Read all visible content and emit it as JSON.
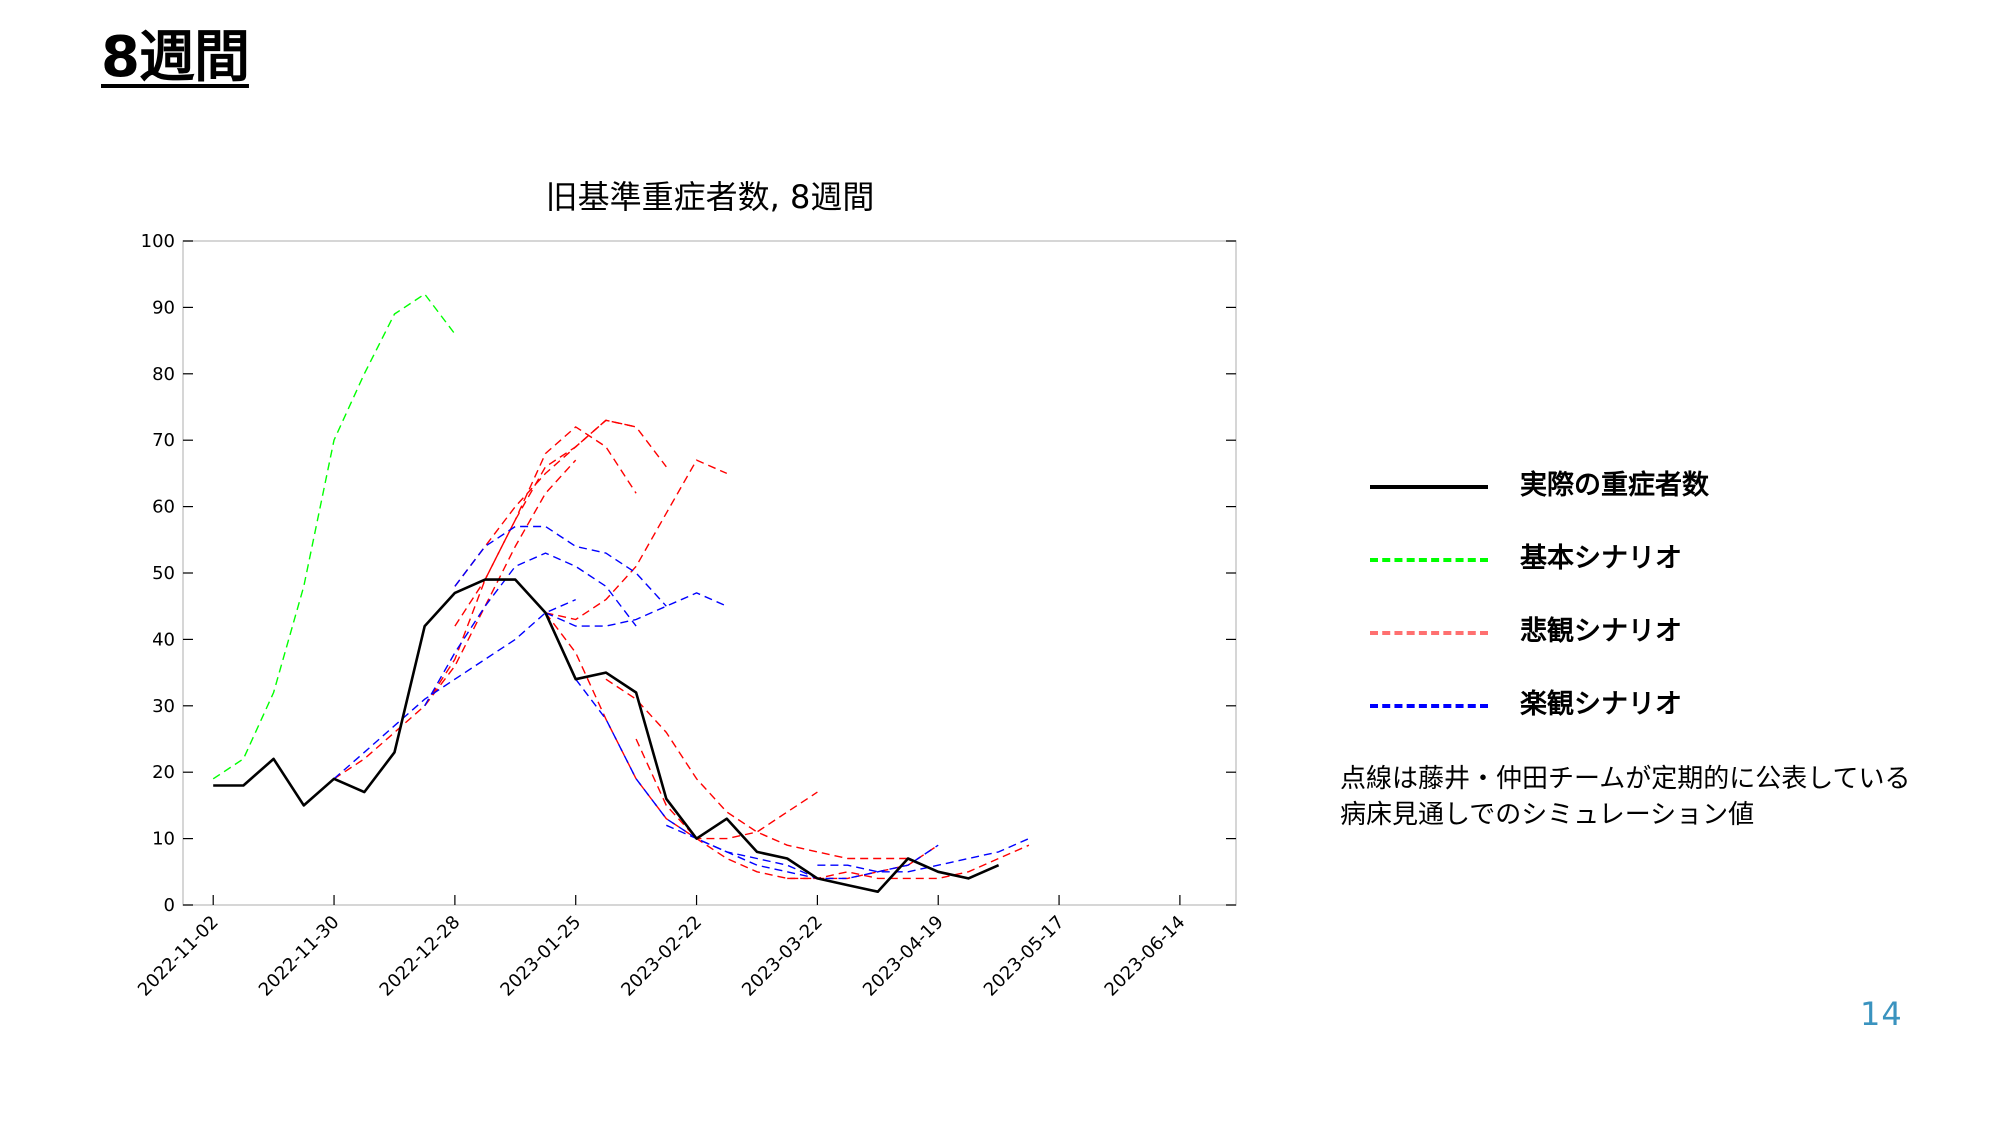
{
  "slide": {
    "title": "8週間",
    "page_number": "14"
  },
  "legend": {
    "items": [
      {
        "label": "実際の重症者数",
        "color": "#000000",
        "style": "solid"
      },
      {
        "label": "基本シナリオ",
        "color": "#00ff00",
        "style": "dashed"
      },
      {
        "label": "悲観シナリオ",
        "color": "#ff7070",
        "style": "dashed"
      },
      {
        "label": "楽観シナリオ",
        "color": "#0000ff",
        "style": "dashed"
      }
    ]
  },
  "note": {
    "line1": "点線は藤井・仲田チームが定期的に公表している",
    "line2": "病床見通しでのシミュレーション値"
  },
  "chart_data": {
    "type": "line",
    "title": "旧基準重症者数, 8週間",
    "xlabel": "",
    "ylabel": "",
    "ylim": [
      0,
      100
    ],
    "yticks": [
      0,
      10,
      20,
      30,
      40,
      50,
      60,
      70,
      80,
      90,
      100
    ],
    "xticks": [
      "2022-11-02",
      "2022-11-30",
      "2022-12-28",
      "2023-01-25",
      "2023-02-22",
      "2023-03-22",
      "2023-04-19",
      "2023-05-17",
      "2023-06-14"
    ],
    "xlim": [
      "2022-10-26",
      "2023-06-27"
    ],
    "grid": false,
    "colors": {
      "actual": "#000000",
      "base": "#00ff00",
      "pessimistic": "#ff0000",
      "optimistic": "#0000ff"
    },
    "series": [
      {
        "group": "actual",
        "x": [
          "2022-11-02",
          "2022-11-09",
          "2022-11-16",
          "2022-11-23",
          "2022-11-30",
          "2022-12-07",
          "2022-12-14",
          "2022-12-21",
          "2022-12-28",
          "2023-01-04",
          "2023-01-11",
          "2023-01-18",
          "2023-01-25",
          "2023-02-01",
          "2023-02-08",
          "2023-02-15",
          "2023-02-22",
          "2023-03-01",
          "2023-03-08",
          "2023-03-15",
          "2023-03-22",
          "2023-03-29",
          "2023-04-05",
          "2023-04-12",
          "2023-04-19",
          "2023-04-26",
          "2023-05-03"
        ],
        "y": [
          18,
          18,
          22,
          15,
          19,
          17,
          23,
          42,
          47,
          49,
          49,
          44,
          34,
          35,
          32,
          16,
          10,
          13,
          8,
          7,
          4,
          3,
          2,
          7,
          5,
          4,
          6
        ]
      },
      {
        "group": "base",
        "x": [
          "2022-11-02",
          "2022-11-09",
          "2022-11-16",
          "2022-11-23",
          "2022-11-30",
          "2022-12-07",
          "2022-12-14",
          "2022-12-21",
          "2022-12-28"
        ],
        "y": [
          19,
          22,
          32,
          48,
          70,
          80,
          89,
          92,
          86
        ]
      },
      {
        "group": "pessimistic",
        "x": [
          "2022-11-30",
          "2022-12-07",
          "2022-12-14",
          "2022-12-21",
          "2022-12-28",
          "2023-01-04",
          "2023-01-11",
          "2023-01-18",
          "2023-01-25"
        ],
        "y": [
          19,
          22,
          26,
          30,
          36,
          45,
          54,
          62,
          67
        ]
      },
      {
        "group": "pessimistic",
        "x": [
          "2022-12-21",
          "2022-12-28",
          "2023-01-04",
          "2023-01-11",
          "2023-01-18",
          "2023-01-25",
          "2023-02-01",
          "2023-02-08"
        ],
        "y": [
          30,
          37,
          49,
          58,
          66,
          69,
          73,
          72
        ]
      },
      {
        "group": "pessimistic",
        "x": [
          "2022-12-28",
          "2023-01-04",
          "2023-01-11",
          "2023-01-18",
          "2023-01-25",
          "2023-02-01",
          "2023-02-08"
        ],
        "y": [
          42,
          49,
          58,
          68,
          72,
          69,
          62
        ]
      },
      {
        "group": "pessimistic",
        "x": [
          "2022-12-28",
          "2023-01-04",
          "2023-01-11",
          "2023-01-18",
          "2023-01-25",
          "2023-02-01",
          "2023-02-08",
          "2023-02-15"
        ],
        "y": [
          48,
          54,
          60,
          65,
          69,
          73,
          72,
          66
        ]
      },
      {
        "group": "pessimistic",
        "x": [
          "2023-01-18",
          "2023-01-25",
          "2023-02-01",
          "2023-02-08",
          "2023-02-15",
          "2023-02-22",
          "2023-03-01"
        ],
        "y": [
          44,
          43,
          46,
          51,
          59,
          67,
          65
        ]
      },
      {
        "group": "pessimistic",
        "x": [
          "2023-01-18",
          "2023-01-25",
          "2023-02-01",
          "2023-02-08",
          "2023-02-15",
          "2023-02-22",
          "2023-03-01",
          "2023-03-08",
          "2023-03-15",
          "2023-03-22"
        ],
        "y": [
          44,
          38,
          28,
          19,
          13,
          10,
          10,
          11,
          14,
          17
        ]
      },
      {
        "group": "pessimistic",
        "x": [
          "2023-02-01",
          "2023-02-08",
          "2023-02-15",
          "2023-02-22",
          "2023-03-01",
          "2023-03-08",
          "2023-03-15",
          "2023-03-22",
          "2023-03-29",
          "2023-04-05",
          "2023-04-12"
        ],
        "y": [
          34,
          31,
          26,
          19,
          14,
          11,
          9,
          8,
          7,
          7,
          7
        ]
      },
      {
        "group": "pessimistic",
        "x": [
          "2023-02-08",
          "2023-02-15",
          "2023-02-22",
          "2023-03-01",
          "2023-03-08",
          "2023-03-15",
          "2023-03-22",
          "2023-03-29",
          "2023-04-05",
          "2023-04-12",
          "2023-04-19"
        ],
        "y": [
          25,
          15,
          10,
          7,
          5,
          4,
          4,
          4,
          5,
          6,
          9
        ]
      },
      {
        "group": "pessimistic",
        "x": [
          "2023-03-15",
          "2023-03-22",
          "2023-03-29",
          "2023-04-05",
          "2023-04-12",
          "2023-04-19",
          "2023-04-26",
          "2023-05-03",
          "2023-05-10"
        ],
        "y": [
          4,
          4,
          5,
          4,
          4,
          4,
          5,
          7,
          9
        ]
      },
      {
        "group": "optimistic",
        "x": [
          "2022-11-30",
          "2022-12-07",
          "2022-12-14",
          "2022-12-21",
          "2022-12-28",
          "2023-01-04",
          "2023-01-11",
          "2023-01-18",
          "2023-01-25"
        ],
        "y": [
          19,
          23,
          27,
          31,
          34,
          37,
          40,
          44,
          46
        ]
      },
      {
        "group": "optimistic",
        "x": [
          "2022-12-21",
          "2022-12-28",
          "2023-01-04",
          "2023-01-11",
          "2023-01-18",
          "2023-01-25",
          "2023-02-01",
          "2023-02-08"
        ],
        "y": [
          30,
          38,
          45,
          51,
          53,
          51,
          48,
          42
        ]
      },
      {
        "group": "optimistic",
        "x": [
          "2022-12-28",
          "2023-01-04",
          "2023-01-11",
          "2023-01-18",
          "2023-01-25",
          "2023-02-01",
          "2023-02-08",
          "2023-02-15"
        ],
        "y": [
          48,
          54,
          57,
          57,
          54,
          53,
          50,
          45
        ]
      },
      {
        "group": "optimistic",
        "x": [
          "2023-01-18",
          "2023-01-25",
          "2023-02-01",
          "2023-02-08",
          "2023-02-15",
          "2023-02-22",
          "2023-03-01"
        ],
        "y": [
          44,
          42,
          42,
          43,
          45,
          47,
          45
        ]
      },
      {
        "group": "optimistic",
        "x": [
          "2023-01-25",
          "2023-02-01",
          "2023-02-08",
          "2023-02-15",
          "2023-02-22",
          "2023-03-01",
          "2023-03-08",
          "2023-03-15",
          "2023-03-22"
        ],
        "y": [
          34,
          28,
          19,
          13,
          10,
          8,
          7,
          6,
          4
        ]
      },
      {
        "group": "optimistic",
        "x": [
          "2023-02-15",
          "2023-02-22",
          "2023-03-01",
          "2023-03-08",
          "2023-03-15",
          "2023-03-22",
          "2023-03-29",
          "2023-04-05",
          "2023-04-12",
          "2023-04-19"
        ],
        "y": [
          12,
          10,
          8,
          6,
          5,
          4,
          4,
          5,
          6,
          9
        ]
      },
      {
        "group": "optimistic",
        "x": [
          "2023-03-22",
          "2023-03-29",
          "2023-04-05",
          "2023-04-12",
          "2023-04-19",
          "2023-04-26",
          "2023-05-03",
          "2023-05-10"
        ],
        "y": [
          6,
          6,
          5,
          5,
          6,
          7,
          8,
          10
        ]
      }
    ]
  }
}
